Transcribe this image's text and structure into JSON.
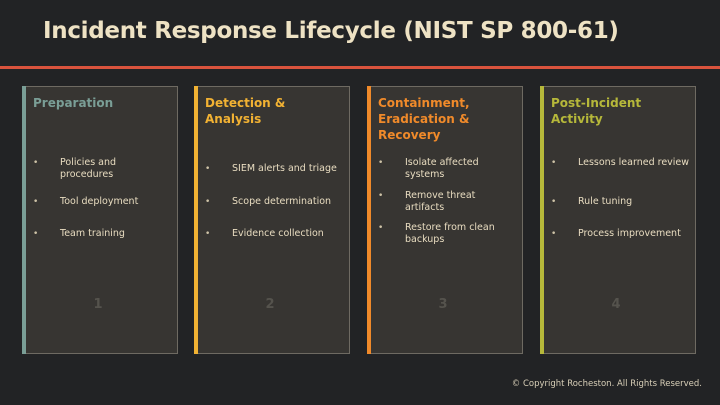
{
  "slide": {
    "title": "Incident Response Lifecycle (NIST SP 800-61)",
    "footer": "© Copyright Rocheston. All Rights Reserved."
  },
  "colors": {
    "background": "#222325",
    "title": "#eee2c4",
    "rule": "#d9533d",
    "card_bg": "#373532"
  },
  "phases": [
    {
      "heading": "Preparation",
      "accent": "#7a9e96",
      "bullets": [
        "Policies and procedures",
        "Tool deployment",
        "Team training"
      ],
      "number": "1"
    },
    {
      "heading": "Detection & Analysis",
      "accent": "#f2b233",
      "bullets": [
        "SIEM alerts and triage",
        "Scope determination",
        "Evidence collection"
      ],
      "number": "2"
    },
    {
      "heading": "Containment, Eradication & Recovery",
      "accent": "#f08a2a",
      "bullets": [
        "Isolate affected systems",
        "Remove threat artifacts",
        "Restore from clean backups"
      ],
      "number": "3"
    },
    {
      "heading": "Post-Incident Activity",
      "accent": "#b6b83a",
      "bullets": [
        "Lessons learned review",
        "Rule tuning",
        "Process improvement"
      ],
      "number": "4"
    }
  ]
}
